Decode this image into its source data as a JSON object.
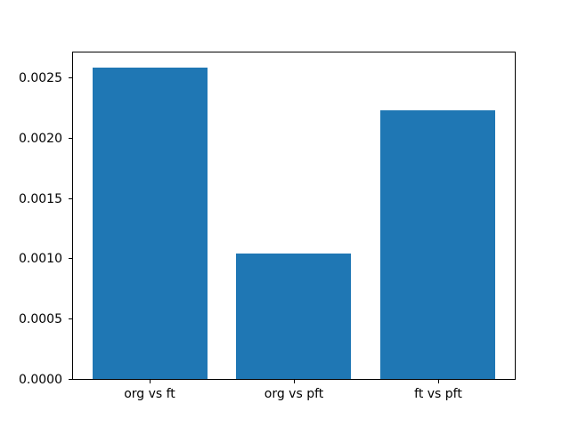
{
  "chart_data": {
    "type": "bar",
    "title": "",
    "xlabel": "",
    "ylabel": "",
    "categories": [
      "org vs ft",
      "org vs pft",
      "ft vs pft"
    ],
    "values": [
      0.00259,
      0.00105,
      0.00223
    ],
    "bar_color": "#1f77b4",
    "bar_width_fraction": 0.8,
    "xlim": [
      -0.54,
      2.54
    ],
    "ylim": [
      0,
      0.00272
    ],
    "yticks": [
      0.0,
      0.0005,
      0.001,
      0.0015,
      0.002,
      0.0025
    ],
    "ytick_labels": [
      "0.0000",
      "0.0005",
      "0.0010",
      "0.0015",
      "0.0020",
      "0.0025"
    ],
    "grid": false,
    "legend": null
  },
  "colors": {
    "bar": "#1f77b4",
    "background": "#ffffff",
    "spine": "#000000",
    "text": "#000000"
  }
}
